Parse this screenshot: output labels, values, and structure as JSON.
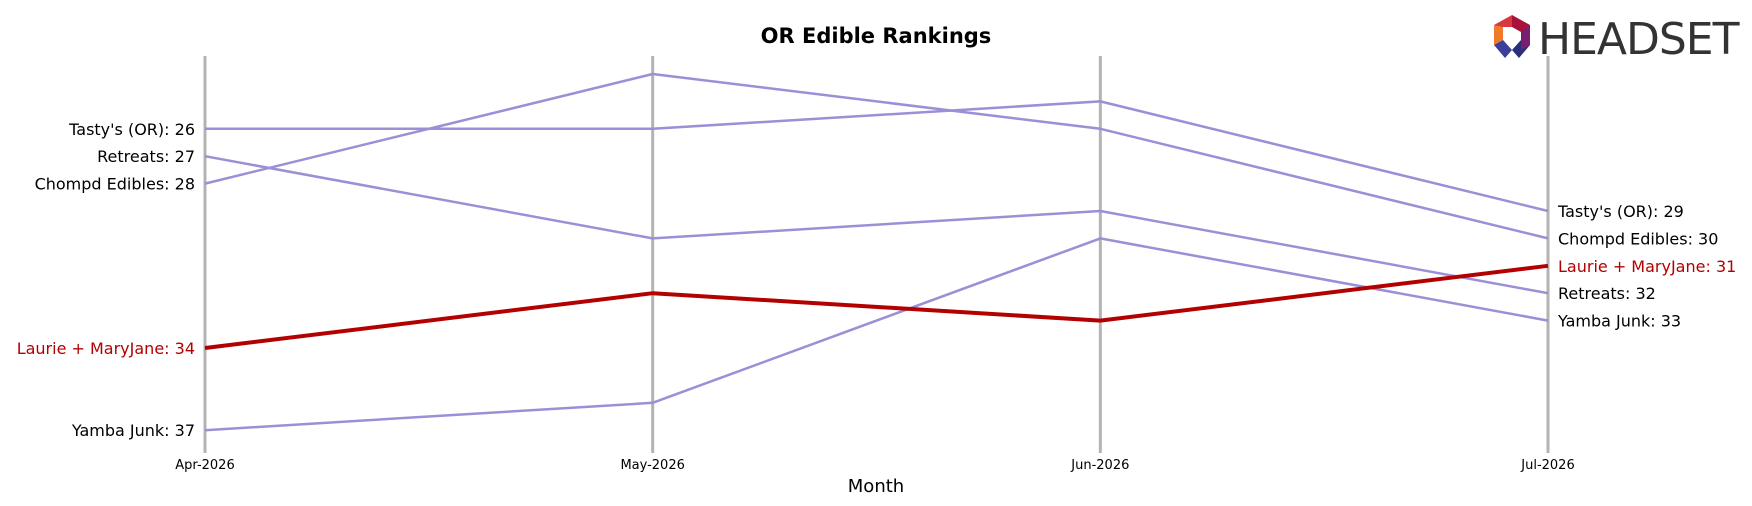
{
  "chart_data": {
    "type": "line",
    "title": "OR Edible Rankings",
    "xlabel": "Month",
    "ylabel": "",
    "x": [
      "Apr-2026",
      "May-2026",
      "Jun-2026",
      "Jul-2026"
    ],
    "y_inverted": true,
    "ylim": [
      24,
      38
    ],
    "grid": "vertical lines at each month",
    "highlight_color": "#b30000",
    "base_color": "#9b8fd6",
    "series": [
      {
        "name": "Tasty's (OR)",
        "values": [
          26,
          26,
          25,
          29
        ],
        "highlight": false,
        "start_label": "Tasty's (OR): 26",
        "end_label": "Tasty's (OR): 29"
      },
      {
        "name": "Retreats",
        "values": [
          27,
          30,
          29,
          32
        ],
        "highlight": false,
        "start_label": "Retreats: 27",
        "end_label": "Retreats: 32"
      },
      {
        "name": "Chompd Edibles",
        "values": [
          28,
          24,
          26,
          30
        ],
        "highlight": false,
        "start_label": "Chompd Edibles: 28",
        "end_label": "Chompd Edibles: 30"
      },
      {
        "name": "Laurie + MaryJane",
        "values": [
          34,
          32,
          33,
          31
        ],
        "highlight": true,
        "start_label": "Laurie + MaryJane: 34",
        "end_label": "Laurie + MaryJane: 31"
      },
      {
        "name": "Yamba Junk",
        "values": [
          37,
          36,
          30,
          33
        ],
        "highlight": false,
        "start_label": "Yamba Junk: 37",
        "end_label": "Yamba Junk: 33"
      }
    ]
  },
  "logo": {
    "text": "HEADSET",
    "icon": "headset-hexagon-logo"
  }
}
